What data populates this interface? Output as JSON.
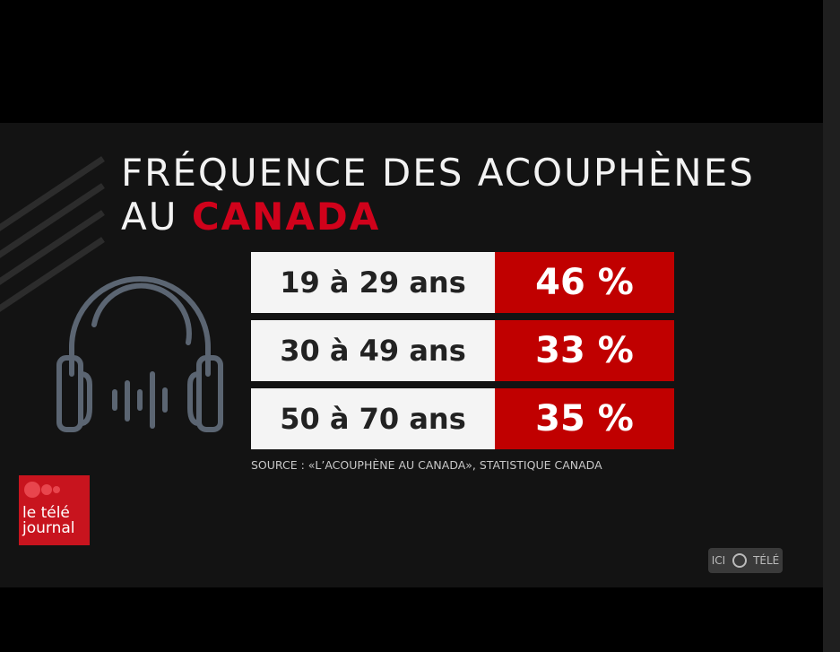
{
  "header": {
    "title_line1": "FRÉQUENCE DES ACOUPHÈNES",
    "title_line2_prefix": "AU",
    "title_line2_highlight": "CANADA"
  },
  "table": {
    "rows": [
      [
        "19 à 29 ans",
        "46 %"
      ],
      [
        "30 à 49 ans",
        "33 %"
      ],
      [
        "50 à 70 ans",
        "35 %"
      ]
    ]
  },
  "source": "SOURCE : «L’ACOUPHÈNE AU CANADA», STATISTIQUE CANADA",
  "logo": {
    "line1": "le télé",
    "line2": "journal"
  },
  "badge": {
    "left": "ICI",
    "right": "TÉLÉ"
  }
}
